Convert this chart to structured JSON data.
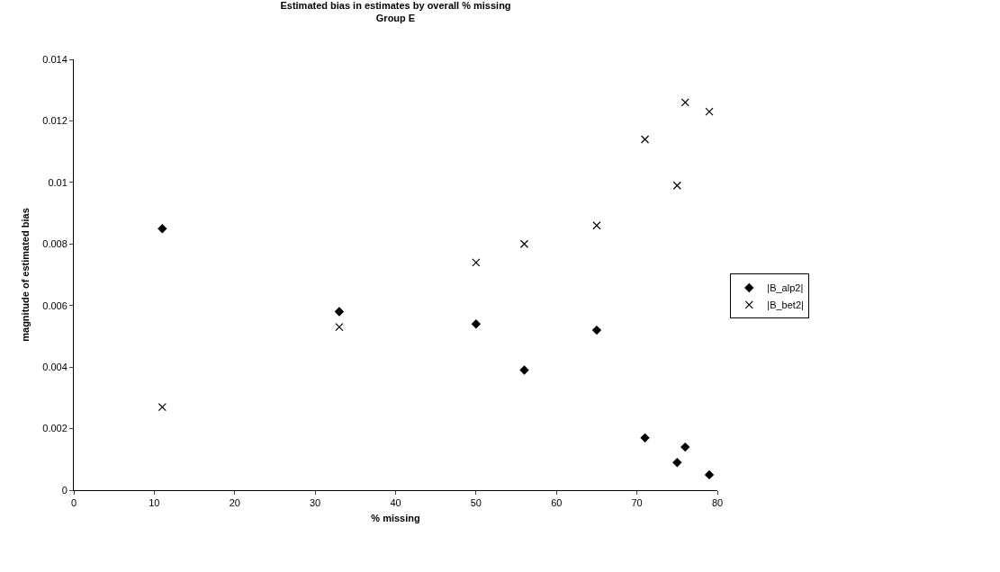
{
  "chart_data": {
    "type": "scatter",
    "title": "Estimated bias in estimates by overall % missing",
    "subtitle": "Group E",
    "xlabel": "% missing",
    "ylabel": "magnitude of estimated bias",
    "x": [
      11,
      33,
      50,
      56,
      65,
      71,
      75,
      76,
      79
    ],
    "series": [
      {
        "name": "|B_alp2|",
        "color": "#000000",
        "marker": "diamond",
        "values": [
          0.0085,
          0.0058,
          0.0054,
          0.0039,
          0.0052,
          0.0017,
          0.0009,
          0.0014,
          0.0005
        ]
      },
      {
        "name": "|B_bet2|",
        "color": "#000000",
        "marker": "cross",
        "values": [
          0.0027,
          0.0053,
          0.0074,
          0.008,
          0.0086,
          0.0114,
          0.0099,
          0.0126,
          0.0123
        ]
      }
    ],
    "xlim": [
      0,
      80
    ],
    "xticks": [
      0,
      10,
      20,
      30,
      40,
      50,
      60,
      70,
      80
    ],
    "ylim": [
      0,
      0.014
    ],
    "yticks": [
      0,
      0.002,
      0.004,
      0.006,
      0.008,
      0.01,
      0.012,
      0.014
    ],
    "grid": false,
    "legend": "right"
  }
}
